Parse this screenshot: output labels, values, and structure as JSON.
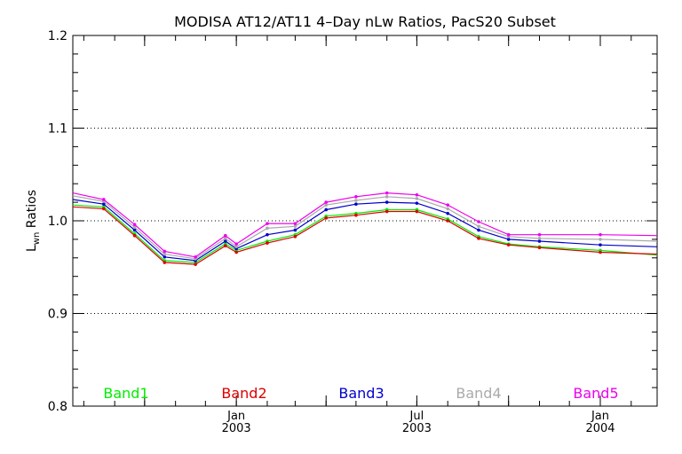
{
  "chart_data": {
    "type": "line",
    "title": "MODISA AT12/AT11 4–Day nLw Ratios, PacS20 Subset",
    "ylabel_main": "L",
    "ylabel_sub": "wn",
    "ylabel_rest": " Ratios",
    "ylim": [
      0.8,
      1.2
    ],
    "yticks": [
      0.8,
      0.9,
      1.0,
      1.1,
      1.2
    ],
    "ytick_labels": [
      "0.8",
      "0.9",
      "1.0",
      "1.1",
      "1.2"
    ],
    "gridlines_y": [
      0.9,
      1.0,
      1.1
    ],
    "xlim": [
      "2002-07-21",
      "2004-02-27"
    ],
    "xtick_labels": [
      {
        "date": "2003-01-01",
        "month": "Jan",
        "year": "2003"
      },
      {
        "date": "2003-07-01",
        "month": "Jul",
        "year": "2003"
      },
      {
        "date": "2004-01-01",
        "month": "Jan",
        "year": "2004"
      }
    ],
    "minor_tick_dates": [
      "2002-08-01",
      "2002-09-01",
      "2002-10-01",
      "2002-11-01",
      "2002-12-01",
      "2003-01-01",
      "2003-02-01",
      "2003-03-01",
      "2003-04-01",
      "2003-05-01",
      "2003-06-01",
      "2003-07-01",
      "2003-08-01",
      "2003-09-01",
      "2003-10-01",
      "2003-11-01",
      "2003-12-01",
      "2004-01-01",
      "2004-02-01"
    ],
    "major_tick_dates": [
      "2002-10-01",
      "2003-01-01",
      "2003-04-01",
      "2003-07-01",
      "2003-10-01",
      "2004-01-01"
    ],
    "x": [
      "2002-07-21",
      "2002-08-21",
      "2002-09-21",
      "2002-10-21",
      "2002-11-21",
      "2002-12-21",
      "2003-01-01",
      "2003-02-01",
      "2003-03-01",
      "2003-04-01",
      "2003-05-01",
      "2003-06-01",
      "2003-07-01",
      "2003-08-01",
      "2003-09-01",
      "2003-10-01",
      "2003-11-01",
      "2004-01-01",
      "2004-02-27"
    ],
    "series": [
      {
        "name": "Band1",
        "color": "#00ee00",
        "values": [
          1.017,
          1.015,
          0.986,
          0.957,
          0.955,
          0.975,
          0.968,
          0.978,
          0.985,
          1.005,
          1.008,
          1.012,
          1.012,
          1.002,
          0.983,
          0.975,
          0.972,
          0.968,
          0.963
        ]
      },
      {
        "name": "Band2",
        "color": "#dd0000",
        "values": [
          1.015,
          1.013,
          0.984,
          0.955,
          0.953,
          0.973,
          0.966,
          0.976,
          0.983,
          1.003,
          1.006,
          1.01,
          1.01,
          1.0,
          0.981,
          0.974,
          0.971,
          0.966,
          0.964
        ]
      },
      {
        "name": "Band3",
        "color": "#0000cc",
        "values": [
          1.023,
          1.018,
          0.99,
          0.961,
          0.957,
          0.978,
          0.97,
          0.985,
          0.99,
          1.012,
          1.018,
          1.02,
          1.019,
          1.008,
          0.99,
          0.98,
          0.978,
          0.974,
          0.972
        ]
      },
      {
        "name": "Band4",
        "color": "#aaaaaa",
        "values": [
          1.027,
          1.021,
          0.993,
          0.964,
          0.959,
          0.981,
          0.972,
          0.992,
          0.994,
          1.017,
          1.022,
          1.026,
          1.024,
          1.013,
          0.994,
          0.983,
          0.981,
          0.98,
          0.978
        ]
      },
      {
        "name": "Band5",
        "color": "#ee00ee",
        "values": [
          1.03,
          1.023,
          0.996,
          0.967,
          0.961,
          0.984,
          0.975,
          0.997,
          0.997,
          1.02,
          1.026,
          1.03,
          1.028,
          1.017,
          0.999,
          0.985,
          0.985,
          0.985,
          0.984
        ]
      }
    ],
    "legend_placement": "bottom, inside plot"
  }
}
